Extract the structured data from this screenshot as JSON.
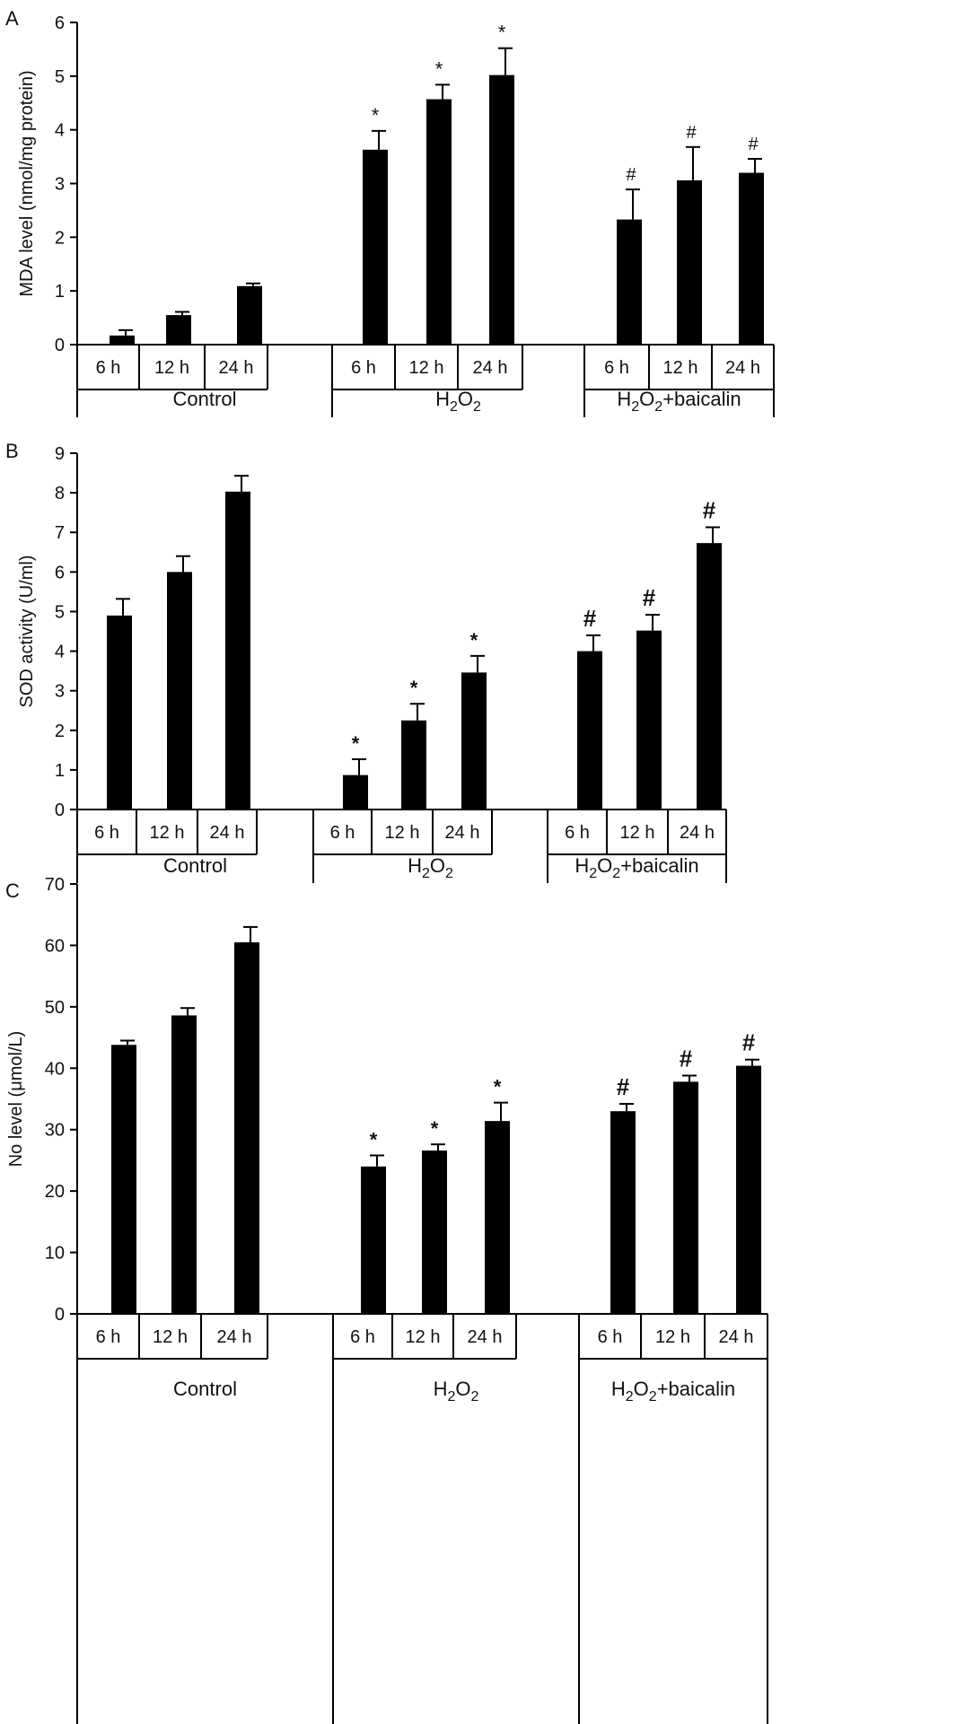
{
  "chart_data": [
    {
      "panel_label": "A",
      "type": "bar",
      "ylabel": "MDA level (nmol/mg protein)",
      "ylim": [
        0,
        6
      ],
      "yticks": [
        0,
        1,
        2,
        3,
        4,
        5,
        6
      ],
      "grid": false,
      "categories": [
        "6 h",
        "12 h",
        "24 h"
      ],
      "groups": [
        {
          "label_main": "Control",
          "label_sub": "",
          "label_post": "",
          "values": [
            0.17,
            0.55,
            1.09
          ],
          "errors": [
            0.1,
            0.06,
            0.05
          ],
          "markers": [
            "",
            "",
            ""
          ]
        },
        {
          "label_main": "H",
          "label_sub": "2",
          "label_post": "O",
          "label_sub2": "2",
          "label_tail": "",
          "values": [
            3.63,
            4.57,
            5.02
          ],
          "errors": [
            0.35,
            0.27,
            0.5
          ],
          "markers": [
            "*",
            "*",
            "*"
          ]
        },
        {
          "label_main": "H",
          "label_sub": "2",
          "label_post": "O",
          "label_sub2": "2",
          "label_tail": "+baicalin",
          "values": [
            2.33,
            3.06,
            3.2
          ],
          "errors": [
            0.56,
            0.62,
            0.26
          ],
          "markers": [
            "#",
            "#",
            "#"
          ]
        }
      ]
    },
    {
      "panel_label": "B",
      "type": "bar",
      "ylabel": "SOD activity (U/ml)",
      "ylim": [
        0,
        9
      ],
      "yticks": [
        0,
        1,
        2,
        3,
        4,
        5,
        6,
        7,
        8,
        9
      ],
      "grid": false,
      "categories": [
        "6 h",
        "12 h",
        "24 h"
      ],
      "groups": [
        {
          "label_main": "Control",
          "label_sub": "",
          "label_post": "",
          "values": [
            4.9,
            6.0,
            8.03
          ],
          "errors": [
            0.42,
            0.4,
            0.4
          ],
          "markers": [
            "",
            "",
            ""
          ]
        },
        {
          "label_main": "H",
          "label_sub": "2",
          "label_post": "O",
          "label_sub2": "2",
          "label_tail": "",
          "values": [
            0.87,
            2.25,
            3.46
          ],
          "errors": [
            0.4,
            0.42,
            0.42
          ],
          "markers": [
            "*",
            "*",
            "*"
          ]
        },
        {
          "label_main": "H",
          "label_sub": "2",
          "label_post": "O",
          "label_sub2": "2",
          "label_tail": "+baicalin",
          "values": [
            4.0,
            4.52,
            6.73
          ],
          "errors": [
            0.4,
            0.4,
            0.4
          ],
          "markers": [
            "#",
            "#",
            "#"
          ]
        }
      ]
    },
    {
      "panel_label": "C",
      "type": "bar",
      "ylabel": "No level (μmol/L)",
      "ylim": [
        0,
        70
      ],
      "yticks": [
        0,
        10,
        20,
        30,
        40,
        50,
        60,
        70
      ],
      "grid": false,
      "categories": [
        "6 h",
        "12 h",
        "24 h"
      ],
      "groups": [
        {
          "label_main": "Control",
          "label_sub": "",
          "label_post": "",
          "values": [
            43.8,
            48.6,
            60.5
          ],
          "errors": [
            0.7,
            1.2,
            2.5
          ],
          "markers": [
            "",
            "",
            ""
          ]
        },
        {
          "label_main": "H",
          "label_sub": "2",
          "label_post": "O",
          "label_sub2": "2",
          "label_tail": "",
          "values": [
            24.0,
            26.6,
            31.4
          ],
          "errors": [
            1.8,
            1.0,
            3.0
          ],
          "markers": [
            "*",
            "*",
            "*"
          ]
        },
        {
          "label_main": "H",
          "label_sub": "2",
          "label_post": "O",
          "label_sub2": "2",
          "label_tail": "+baicalin",
          "values": [
            33.0,
            37.8,
            40.4
          ],
          "errors": [
            1.2,
            1.0,
            1.0
          ],
          "markers": [
            "#",
            "#",
            "#"
          ]
        }
      ]
    }
  ]
}
